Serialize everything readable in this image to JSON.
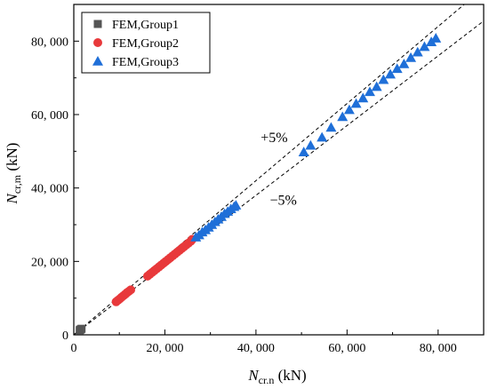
{
  "chart_data": {
    "type": "scatter",
    "xlabel": {
      "main": "N",
      "sub": "cr.n",
      "unit": " (kN)"
    },
    "ylabel": {
      "main": "N",
      "sub": "cr,m",
      "unit": " (kN)"
    },
    "xlim": [
      0,
      90000
    ],
    "ylim": [
      0,
      90000
    ],
    "x_ticks": [
      0,
      20000,
      40000,
      60000,
      80000
    ],
    "x_tick_labels": [
      "0",
      "20, 000",
      "40, 000",
      "60, 000",
      "80, 000"
    ],
    "y_ticks": [
      0,
      20000,
      40000,
      60000,
      80000
    ],
    "y_tick_labels": [
      "0",
      "20, 000",
      "40, 000",
      "60, 000",
      "80, 000"
    ],
    "legend_position": "top-left",
    "reference_lines": [
      {
        "label": "+5%",
        "slope": 1.05,
        "label_x": 44000,
        "label_y": 52500
      },
      {
        "label": "−5%",
        "slope": 0.95,
        "label_x": 46000,
        "label_y": 35500
      }
    ],
    "series": [
      {
        "name": "FEM,Group1",
        "marker": "square",
        "color": "#555555",
        "points": [
          [
            1300,
            1250
          ],
          [
            1400,
            1380
          ],
          [
            1550,
            1500
          ],
          [
            1700,
            1650
          ]
        ]
      },
      {
        "name": "FEM,Group2",
        "marker": "circle",
        "color": "#e8393b",
        "points": [
          [
            9300,
            9000
          ],
          [
            9700,
            9400
          ],
          [
            10100,
            9800
          ],
          [
            10500,
            10250
          ],
          [
            10900,
            10650
          ],
          [
            11300,
            11050
          ],
          [
            11700,
            11500
          ],
          [
            12100,
            11850
          ],
          [
            12500,
            12250
          ],
          [
            16200,
            16000
          ],
          [
            16700,
            16500
          ],
          [
            17200,
            17000
          ],
          [
            17700,
            17500
          ],
          [
            18200,
            18000
          ],
          [
            18700,
            18500
          ],
          [
            19200,
            19000
          ],
          [
            19700,
            19500
          ],
          [
            20200,
            20000
          ],
          [
            20700,
            20500
          ],
          [
            21200,
            21000
          ],
          [
            21700,
            21500
          ],
          [
            22200,
            22000
          ],
          [
            22700,
            22500
          ],
          [
            23200,
            23000
          ],
          [
            23700,
            23500
          ],
          [
            24200,
            24000
          ],
          [
            24700,
            24500
          ],
          [
            25200,
            25000
          ],
          [
            25700,
            25500
          ],
          [
            26000,
            26000
          ]
        ]
      },
      {
        "name": "FEM,Group3",
        "marker": "triangle",
        "color": "#1f6fd8",
        "points": [
          [
            26800,
            26600
          ],
          [
            27500,
            27200
          ],
          [
            28200,
            28000
          ],
          [
            28900,
            28600
          ],
          [
            29600,
            29300
          ],
          [
            30300,
            30000
          ],
          [
            31000,
            30800
          ],
          [
            31700,
            31500
          ],
          [
            32400,
            32200
          ],
          [
            33100,
            33000
          ],
          [
            33800,
            33600
          ],
          [
            34500,
            34300
          ],
          [
            35200,
            34900
          ],
          [
            35600,
            35300
          ],
          [
            50500,
            49800
          ],
          [
            52000,
            51600
          ],
          [
            54500,
            53800
          ],
          [
            56500,
            56500
          ],
          [
            59000,
            59400
          ],
          [
            60500,
            61300
          ],
          [
            62000,
            63000
          ],
          [
            63500,
            64500
          ],
          [
            65000,
            66200
          ],
          [
            66500,
            67600
          ],
          [
            68000,
            69500
          ],
          [
            69500,
            71000
          ],
          [
            71000,
            72500
          ],
          [
            72500,
            73800
          ],
          [
            74000,
            75500
          ],
          [
            75500,
            77000
          ],
          [
            77000,
            78500
          ],
          [
            78500,
            79800
          ],
          [
            79500,
            80800
          ]
        ]
      }
    ]
  }
}
